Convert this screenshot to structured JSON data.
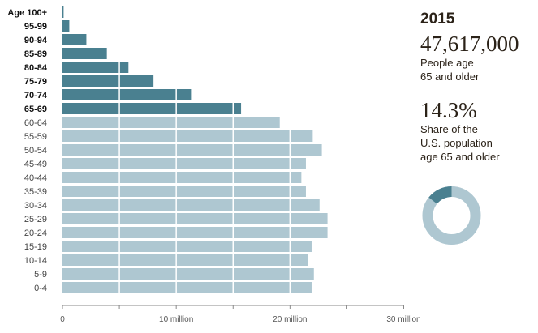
{
  "chart_data": {
    "type": "bar",
    "orientation": "horizontal",
    "categories": [
      "Age 100+",
      "95-99",
      "90-94",
      "85-89",
      "80-84",
      "75-79",
      "70-74",
      "65-69",
      "60-64",
      "55-59",
      "50-54",
      "45-49",
      "40-44",
      "35-39",
      "30-34",
      "25-29",
      "20-24",
      "15-19",
      "10-14",
      "5-9",
      "0-4"
    ],
    "values": [
      0.1,
      0.6,
      2.1,
      3.9,
      5.8,
      8.0,
      11.3,
      15.7,
      19.1,
      22.0,
      22.8,
      21.4,
      21.0,
      21.4,
      22.6,
      23.3,
      23.3,
      21.9,
      21.6,
      22.1,
      21.9
    ],
    "highlight_categories": [
      "Age 100+",
      "95-99",
      "90-94",
      "85-89",
      "80-84",
      "75-79",
      "70-74",
      "65-69"
    ],
    "value_unit": "million",
    "xlim": [
      0,
      30
    ],
    "x_ticks": [
      0,
      5,
      10,
      15,
      20,
      25,
      30
    ],
    "x_tick_labels": {
      "0": "0",
      "10": "10 million",
      "20": "20 million",
      "30": "30 million"
    },
    "grid": "vertical white lines every 5 million",
    "colors": {
      "highlight": "#4a8090",
      "base": "#aec7d1"
    }
  },
  "summary": {
    "year": "2015",
    "count": "47,617,000",
    "count_label_1": "People age",
    "count_label_2": "65 and older",
    "share": "14.3%",
    "share_value": 14.3,
    "share_label_1": "Share of the",
    "share_label_2": "U.S. population",
    "share_label_3": "age 65 and older"
  }
}
